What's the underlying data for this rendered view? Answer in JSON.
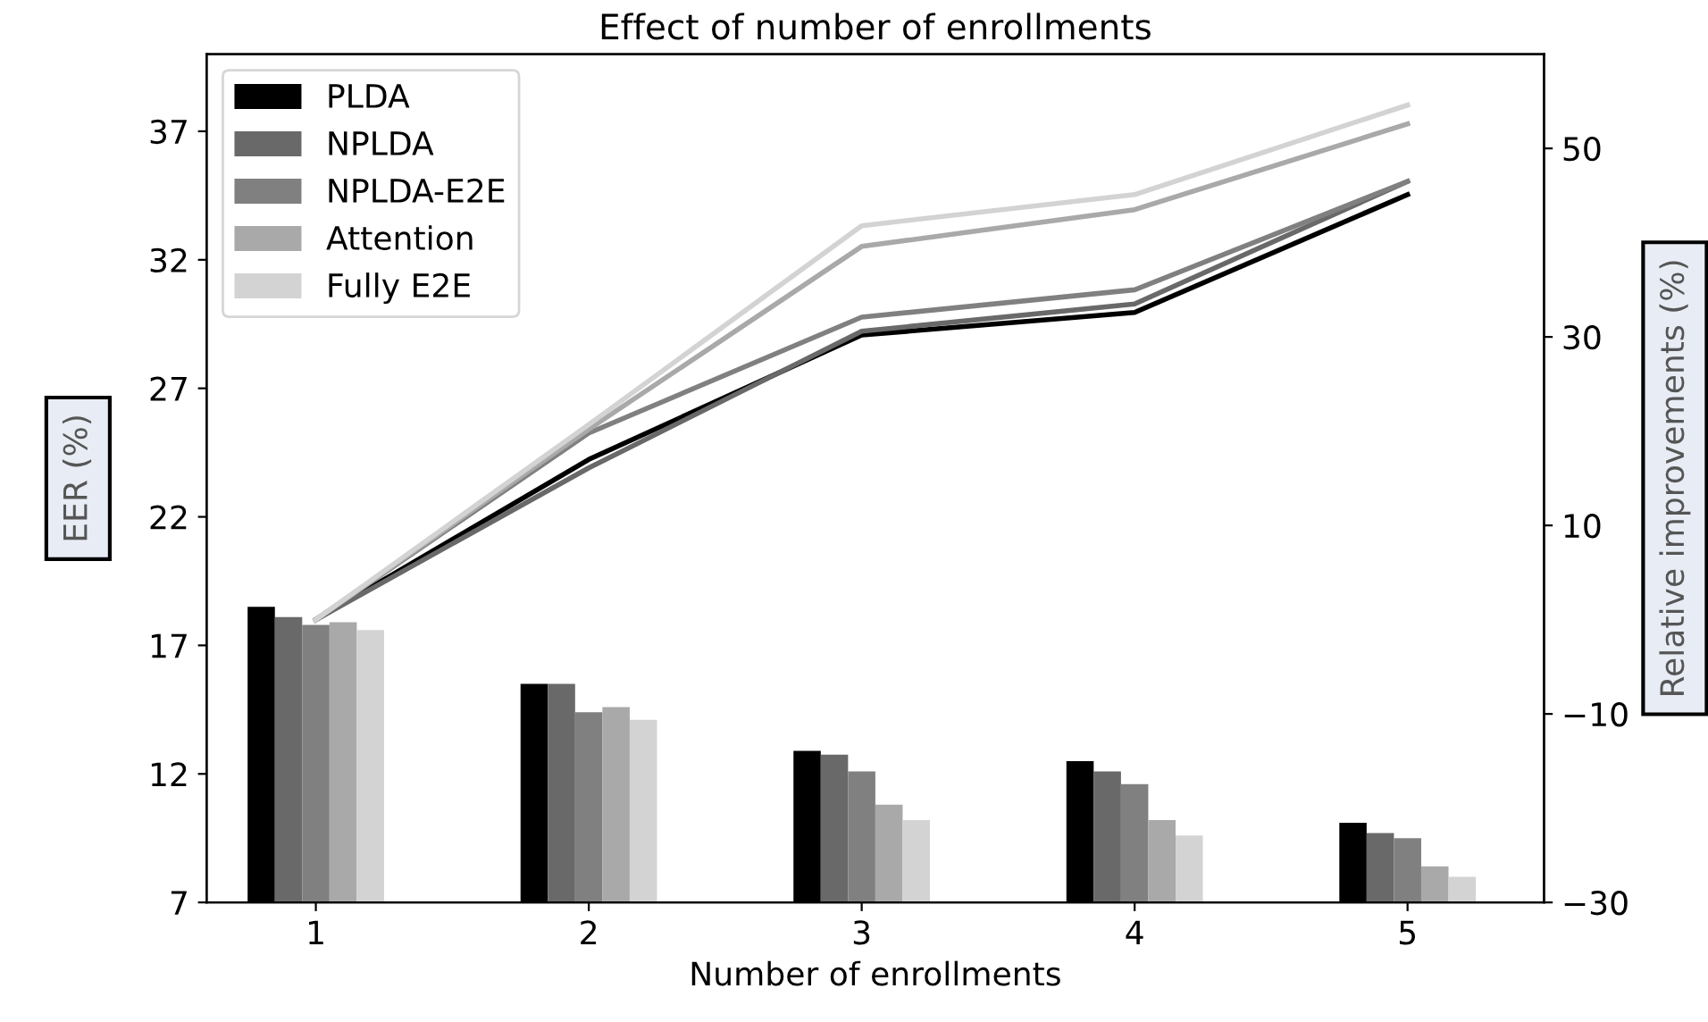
{
  "chart_data": {
    "type": "bar",
    "title": "Effect of number of enrollments",
    "xlabel": "Number of enrollments",
    "ylabel": "EER (%)",
    "y2label": "Relative improvements (%)",
    "categories": [
      "1",
      "2",
      "3",
      "4",
      "5"
    ],
    "series": [
      {
        "name": "PLDA",
        "color": "#000000",
        "values": [
          18.5,
          15.5,
          12.9,
          12.5,
          10.1
        ]
      },
      {
        "name": "NPLDA",
        "color": "#696969",
        "values": [
          18.1,
          15.5,
          12.75,
          12.1,
          9.7
        ]
      },
      {
        "name": "NPLDA-E2E",
        "color": "#808080",
        "values": [
          17.8,
          14.4,
          12.1,
          11.6,
          9.5
        ]
      },
      {
        "name": "Attention",
        "color": "#a9a9a9",
        "values": [
          17.9,
          14.6,
          10.8,
          10.2,
          8.4
        ]
      },
      {
        "name": "Fully E2E",
        "color": "#d3d3d3",
        "values": [
          17.6,
          14.1,
          10.2,
          9.6,
          8.0
        ]
      },
      {
        "type": "line",
        "axis": "y2",
        "color": "#000000",
        "values": [
          0,
          17.0,
          30.2,
          32.6,
          45.1
        ]
      },
      {
        "type": "line",
        "axis": "y2",
        "color": "#696969",
        "values": [
          0,
          16.1,
          30.6,
          33.5,
          46.5
        ]
      },
      {
        "type": "line",
        "axis": "y2",
        "color": "#808080",
        "values": [
          0,
          19.8,
          32.1,
          35.0,
          46.5
        ]
      },
      {
        "type": "line",
        "axis": "y2",
        "color": "#a9a9a9",
        "values": [
          0,
          20.2,
          39.6,
          43.5,
          52.6
        ]
      },
      {
        "type": "line",
        "axis": "y2",
        "color": "#d3d3d3",
        "values": [
          0,
          20.7,
          41.8,
          45.1,
          54.6
        ]
      }
    ],
    "ylim": [
      7,
      40
    ],
    "yticks": [
      7,
      12,
      17,
      22,
      27,
      32,
      37
    ],
    "y2lim": [
      -30,
      60
    ],
    "y2ticks": [
      {
        "value": -30,
        "label": "−30"
      },
      {
        "value": -10,
        "label": "−10"
      },
      10,
      30,
      50
    ],
    "legend": "top left",
    "grid": false,
    "marker": "none",
    "line_style": "solid"
  }
}
